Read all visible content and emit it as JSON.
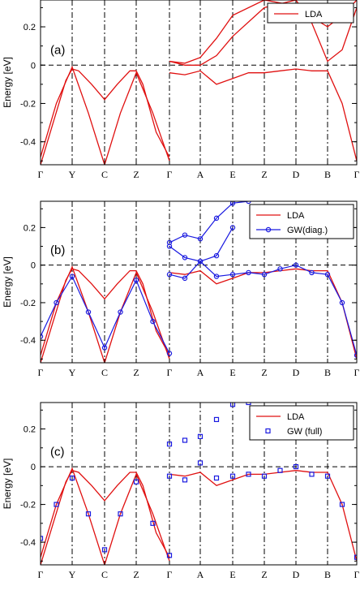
{
  "chart_data": [
    {
      "type": "line",
      "panel_label": "(a)",
      "ylabel": "Energy [eV]",
      "ylim": [
        -0.52,
        0.34
      ],
      "yticks": [
        -0.4,
        -0.2,
        0,
        0.2
      ],
      "ytick_labels": [
        "-0.4",
        "-0.2",
        "0",
        "0.2"
      ],
      "k_labels": [
        "Γ",
        "Y",
        "C",
        "Z",
        "Γ",
        "A",
        "E",
        "Z",
        "D",
        "B",
        "Γ"
      ],
      "legend": [
        {
          "name": "LDA",
          "style": "line",
          "color": "#e01010"
        }
      ],
      "legend_position": "top-right",
      "series": [
        {
          "name": "LDA",
          "x": [
            0,
            0.4,
            0.8,
            1,
            1.2,
            1.6,
            2,
            2.4,
            2.8,
            3,
            3.2,
            3.6,
            4
          ],
          "y": [
            -0.52,
            -0.3,
            -0.08,
            -0.02,
            -0.03,
            -0.1,
            -0.18,
            -0.1,
            -0.03,
            -0.03,
            -0.1,
            -0.35,
            -0.48
          ]
        },
        {
          "name": "LDA",
          "x": [
            0,
            0.5,
            1,
            1.5,
            2,
            2.5,
            3,
            3.5,
            4
          ],
          "y": [
            -0.48,
            -0.2,
            -0.01,
            -0.25,
            -0.52,
            -0.25,
            -0.04,
            -0.25,
            -0.5
          ]
        },
        {
          "name": "LDA",
          "x": [
            4,
            4.5,
            5,
            5.5,
            6,
            6.5,
            7,
            7.5,
            8,
            8.5,
            9,
            9.5,
            10
          ],
          "y": [
            -0.04,
            -0.05,
            -0.03,
            -0.1,
            -0.07,
            -0.04,
            -0.04,
            -0.03,
            -0.02,
            -0.03,
            -0.03,
            -0.2,
            -0.5
          ]
        },
        {
          "name": "LDA",
          "x": [
            4,
            4.5,
            5,
            5.5,
            6,
            7,
            8,
            8.5,
            9,
            9.5,
            10
          ],
          "y": [
            0.02,
            0.01,
            0.04,
            0.14,
            0.26,
            0.34,
            0.31,
            0.25,
            0.2,
            0.26,
            0.34
          ]
        },
        {
          "name": "LDA",
          "x": [
            4,
            4.5,
            5,
            5.5,
            6,
            7,
            8,
            8.5,
            9,
            9.5,
            10
          ],
          "y": [
            0.02,
            0.0,
            0.0,
            0.05,
            0.15,
            0.3,
            0.34,
            0.22,
            0.02,
            0.08,
            0.3
          ]
        }
      ]
    },
    {
      "type": "line",
      "panel_label": "(b)",
      "ylabel": "Energy [eV]",
      "ylim": [
        -0.52,
        0.34
      ],
      "yticks": [
        -0.4,
        -0.2,
        0,
        0.2
      ],
      "ytick_labels": [
        "-0.4",
        "-0.2",
        "0",
        "0.2"
      ],
      "k_labels": [
        "Γ",
        "Y",
        "C",
        "Z",
        "Γ",
        "A",
        "E",
        "Z",
        "D",
        "B",
        "Γ"
      ],
      "legend": [
        {
          "name": "LDA",
          "style": "line",
          "color": "#e01010"
        },
        {
          "name": "GW(diag.)",
          "style": "line-circle",
          "color": "#1a1ae0"
        }
      ],
      "legend_position": "top-right",
      "series": [
        {
          "name": "LDA",
          "x": [
            0,
            0.4,
            0.8,
            1,
            1.2,
            1.6,
            2,
            2.4,
            2.8,
            3,
            3.2,
            3.6,
            4
          ],
          "y": [
            -0.52,
            -0.3,
            -0.08,
            -0.02,
            -0.03,
            -0.1,
            -0.18,
            -0.1,
            -0.03,
            -0.03,
            -0.1,
            -0.35,
            -0.48
          ]
        },
        {
          "name": "LDA",
          "x": [
            0,
            0.5,
            1,
            1.5,
            2,
            2.5,
            3,
            3.5,
            4
          ],
          "y": [
            -0.48,
            -0.2,
            -0.01,
            -0.25,
            -0.52,
            -0.25,
            -0.04,
            -0.25,
            -0.5
          ]
        },
        {
          "name": "LDA",
          "x": [
            4,
            4.5,
            5,
            5.5,
            6,
            6.5,
            7,
            7.5,
            8,
            8.5,
            9,
            9.5,
            10
          ],
          "y": [
            -0.04,
            -0.05,
            -0.03,
            -0.1,
            -0.07,
            -0.04,
            -0.04,
            -0.03,
            -0.02,
            -0.03,
            -0.03,
            -0.2,
            -0.5
          ]
        },
        {
          "name": "GW(diag.)",
          "x": [
            0,
            0.5,
            1,
            1.5,
            2,
            2.5,
            3,
            3.5,
            4
          ],
          "y": [
            -0.38,
            -0.2,
            -0.06,
            -0.25,
            -0.44,
            -0.25,
            -0.08,
            -0.3,
            -0.47
          ]
        },
        {
          "name": "GW(diag.)",
          "x": [
            4,
            4.5,
            5,
            5.5,
            6,
            6.5,
            7,
            7.5,
            8,
            8.5,
            9,
            9.5,
            10
          ],
          "y": [
            -0.05,
            -0.07,
            0.02,
            -0.06,
            -0.05,
            -0.04,
            -0.05,
            -0.02,
            0.0,
            -0.04,
            -0.05,
            -0.2,
            -0.48
          ]
        },
        {
          "name": "GW(diag.)",
          "x": [
            4,
            4.5,
            5,
            5.5,
            6,
            6.5
          ],
          "y": [
            0.12,
            0.16,
            0.14,
            0.25,
            0.33,
            0.34
          ]
        },
        {
          "name": "GW(diag.)",
          "x": [
            4,
            4.5,
            5,
            5.5,
            6
          ],
          "y": [
            0.1,
            0.04,
            0.02,
            0.05,
            0.2
          ]
        }
      ]
    },
    {
      "type": "scatter",
      "panel_label": "(c)",
      "ylabel": "Energy [eV]",
      "ylim": [
        -0.52,
        0.34
      ],
      "yticks": [
        -0.4,
        -0.2,
        0,
        0.2
      ],
      "ytick_labels": [
        "-0.4",
        "-0.2",
        "0",
        "0.2"
      ],
      "k_labels": [
        "Γ",
        "Y",
        "C",
        "Z",
        "Γ",
        "A",
        "E",
        "Z",
        "D",
        "B",
        "Γ"
      ],
      "legend": [
        {
          "name": "LDA",
          "style": "line",
          "color": "#e01010"
        },
        {
          "name": "GW (full)",
          "style": "square",
          "color": "#1a1ae0"
        }
      ],
      "legend_position": "top-right",
      "series": [
        {
          "name": "LDA",
          "x": [
            0,
            0.4,
            0.8,
            1,
            1.2,
            1.6,
            2,
            2.4,
            2.8,
            3,
            3.2,
            3.6,
            4
          ],
          "y": [
            -0.52,
            -0.3,
            -0.08,
            -0.02,
            -0.03,
            -0.1,
            -0.18,
            -0.1,
            -0.03,
            -0.03,
            -0.1,
            -0.35,
            -0.48
          ]
        },
        {
          "name": "LDA",
          "x": [
            0,
            0.5,
            1,
            1.5,
            2,
            2.5,
            3,
            3.5,
            4
          ],
          "y": [
            -0.48,
            -0.2,
            -0.01,
            -0.25,
            -0.52,
            -0.25,
            -0.04,
            -0.25,
            -0.5
          ]
        },
        {
          "name": "LDA",
          "x": [
            4,
            4.5,
            5,
            5.5,
            6,
            6.5,
            7,
            7.5,
            8,
            8.5,
            9,
            9.5,
            10
          ],
          "y": [
            -0.04,
            -0.05,
            -0.03,
            -0.1,
            -0.07,
            -0.04,
            -0.04,
            -0.03,
            -0.02,
            -0.03,
            -0.03,
            -0.2,
            -0.5
          ]
        },
        {
          "name": "GW (full)",
          "x": [
            0,
            0.5,
            1,
            1.5,
            2,
            2.5,
            3,
            3.5,
            4
          ],
          "y": [
            -0.38,
            -0.2,
            -0.06,
            -0.25,
            -0.44,
            -0.25,
            -0.08,
            -0.3,
            -0.47
          ]
        },
        {
          "name": "GW (full)",
          "x": [
            4,
            4.5,
            5,
            5.5,
            6,
            6.5,
            7,
            7.5,
            8,
            8.5,
            9,
            9.5,
            10
          ],
          "y": [
            -0.05,
            -0.07,
            0.02,
            -0.06,
            -0.05,
            -0.04,
            -0.05,
            -0.02,
            0.0,
            -0.04,
            -0.05,
            -0.2,
            -0.48
          ]
        },
        {
          "name": "GW (full)",
          "x": [
            4,
            4.5,
            5,
            5.5,
            6,
            6.5
          ],
          "y": [
            0.12,
            0.14,
            0.16,
            0.25,
            0.33,
            0.34
          ]
        }
      ]
    }
  ]
}
